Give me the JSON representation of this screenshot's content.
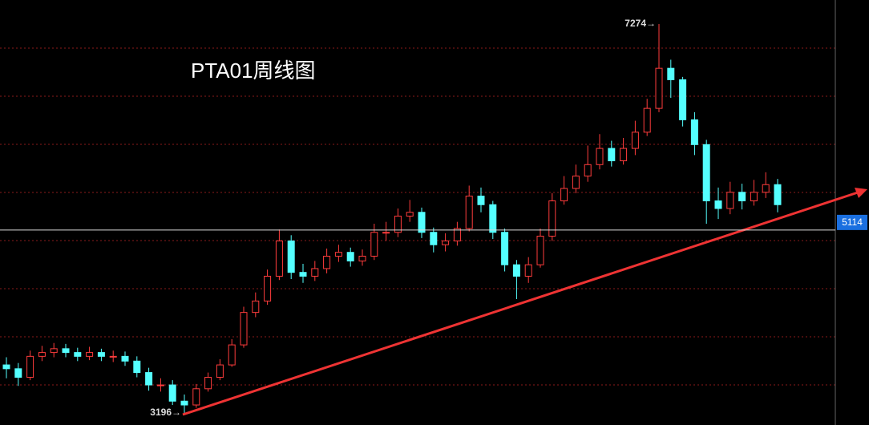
{
  "chart_data": {
    "type": "candlestick",
    "title": "PTA01周线图",
    "ylim": [
      3070,
      7526
    ],
    "up_color": "#ff3c3c",
    "down_color": "#54ffff",
    "open": [
      3700,
      3660,
      3570,
      3790,
      3830,
      3870,
      3830,
      3790,
      3830,
      3790,
      3790,
      3740,
      3620,
      3490,
      3490,
      3320,
      3280,
      3450,
      3570,
      3700,
      3910,
      4250,
      4370,
      4630,
      5000,
      4670,
      4630,
      4710,
      4840,
      4880,
      4790,
      4840,
      5090,
      5090,
      5260,
      5300,
      5090,
      4960,
      5000,
      5130,
      5470,
      5380,
      5090,
      4750,
      4630,
      4750,
      5050,
      5420,
      5550,
      5680,
      5800,
      5970,
      5840,
      5970,
      6140,
      6390,
      6810,
      6690,
      6270,
      6010,
      5420,
      5340,
      5510,
      5420,
      5510,
      5590
    ],
    "high": [
      3780,
      3720,
      3850,
      3900,
      3930,
      3920,
      3880,
      3890,
      3870,
      3850,
      3840,
      3790,
      3670,
      3560,
      3540,
      3390,
      3500,
      3620,
      3760,
      3970,
      4310,
      4460,
      4700,
      5120,
      5060,
      4760,
      4790,
      4920,
      4960,
      4930,
      4910,
      5180,
      5200,
      5340,
      5430,
      5350,
      5140,
      5080,
      5200,
      5580,
      5560,
      5420,
      5130,
      4800,
      4830,
      5130,
      5500,
      5680,
      5800,
      6000,
      6120,
      6050,
      6080,
      6260,
      6490,
      7274,
      6900,
      6720,
      6350,
      6060,
      5560,
      5620,
      5600,
      5640,
      5720,
      5650
    ],
    "low": [
      3560,
      3480,
      3540,
      3740,
      3780,
      3780,
      3740,
      3750,
      3740,
      3730,
      3690,
      3570,
      3430,
      3420,
      3280,
      3196,
      3250,
      3420,
      3540,
      3680,
      3880,
      4200,
      4330,
      4590,
      4600,
      4560,
      4580,
      4660,
      4780,
      4730,
      4740,
      4800,
      5000,
      5040,
      5200,
      5030,
      4880,
      4890,
      4950,
      5100,
      5300,
      5020,
      4680,
      4390,
      4560,
      4720,
      5000,
      5380,
      5500,
      5620,
      5750,
      5780,
      5800,
      5900,
      6100,
      6350,
      6500,
      6200,
      5900,
      5180,
      5230,
      5280,
      5330,
      5370,
      5450,
      5300
    ],
    "close": [
      3660,
      3570,
      3790,
      3830,
      3870,
      3830,
      3790,
      3830,
      3790,
      3790,
      3740,
      3620,
      3490,
      3490,
      3320,
      3280,
      3450,
      3570,
      3700,
      3910,
      4250,
      4370,
      4630,
      5000,
      4670,
      4630,
      4710,
      4840,
      4880,
      4790,
      4840,
      5090,
      5090,
      5260,
      5300,
      5090,
      4960,
      5000,
      5130,
      5470,
      5380,
      5090,
      4750,
      4630,
      4750,
      5050,
      5420,
      5550,
      5680,
      5800,
      5970,
      5840,
      5970,
      6140,
      6390,
      6810,
      6690,
      6270,
      6010,
      5420,
      5340,
      5510,
      5420,
      5510,
      5590,
      5380
    ],
    "annotations": [
      {
        "label": "7274→",
        "value": 7274,
        "anchor": "high"
      },
      {
        "label": "3196→",
        "value": 3196,
        "anchor": "low"
      }
    ],
    "price_line": {
      "value": 5114,
      "label": "5114",
      "color": "#1a6fe0"
    }
  }
}
